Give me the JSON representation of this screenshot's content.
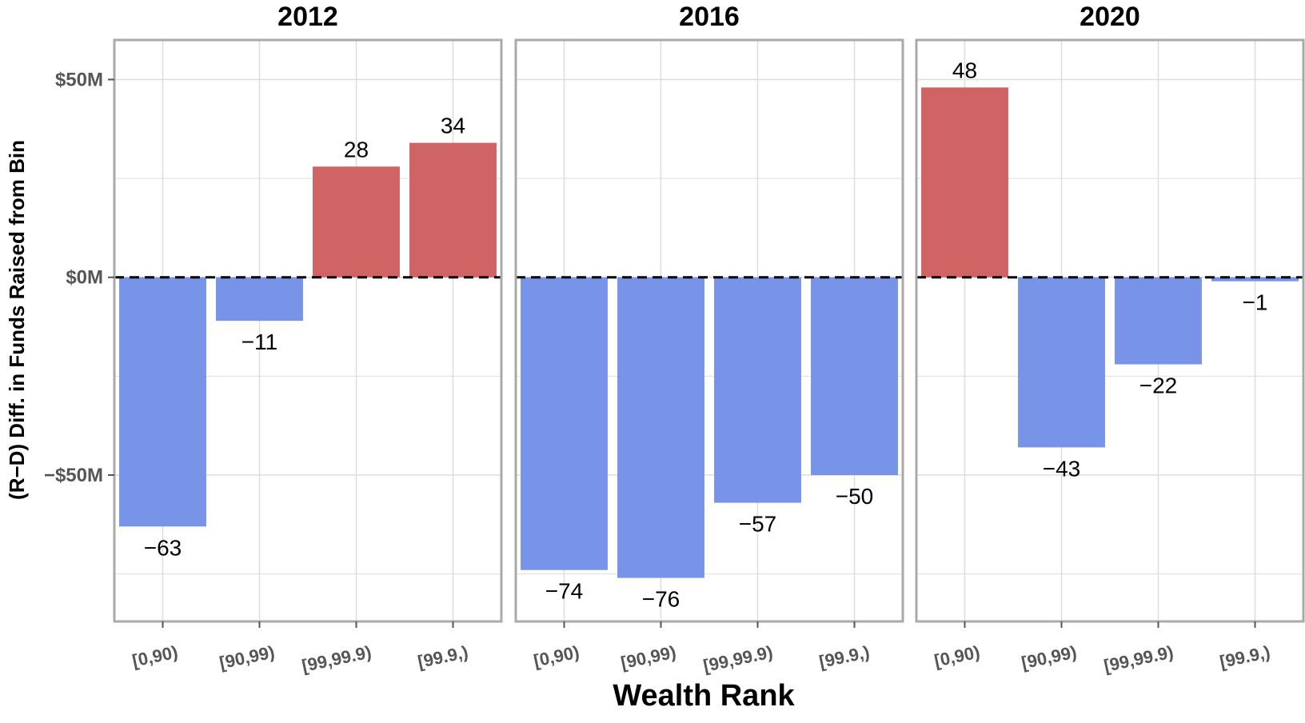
{
  "chart_data": {
    "type": "bar",
    "xlabel": "Wealth Rank",
    "ylabel": "(R−D) Diff. in Funds Raised from Bin",
    "ylim": [
      -87,
      60
    ],
    "yticks": [
      {
        "value": 50,
        "label": "$50M"
      },
      {
        "value": 0,
        "label": "$0M"
      },
      {
        "value": -50,
        "label": "−$50M"
      }
    ],
    "categories": [
      "[0,90)",
      "[90,99)",
      "[99,99.9)",
      "[99.9,)"
    ],
    "colors": {
      "positive": "#D06464",
      "negative": "#7894E8",
      "zero_line": "#000000",
      "grid": "#DDDDDD",
      "panel_border": "#AAAAAA"
    },
    "grid": true,
    "reference_line": {
      "y": 0,
      "style": "dashed"
    },
    "facets": [
      {
        "title": "2012",
        "values": [
          -63,
          -11,
          28,
          34
        ],
        "labels": [
          "−63",
          "−11",
          "28",
          "34"
        ]
      },
      {
        "title": "2016",
        "values": [
          -74,
          -76,
          -57,
          -50
        ],
        "labels": [
          "−74",
          "−76",
          "−57",
          "−50"
        ]
      },
      {
        "title": "2020",
        "values": [
          48,
          -43,
          -22,
          -1
        ],
        "labels": [
          "48",
          "−43",
          "−22",
          "−1"
        ]
      }
    ]
  }
}
